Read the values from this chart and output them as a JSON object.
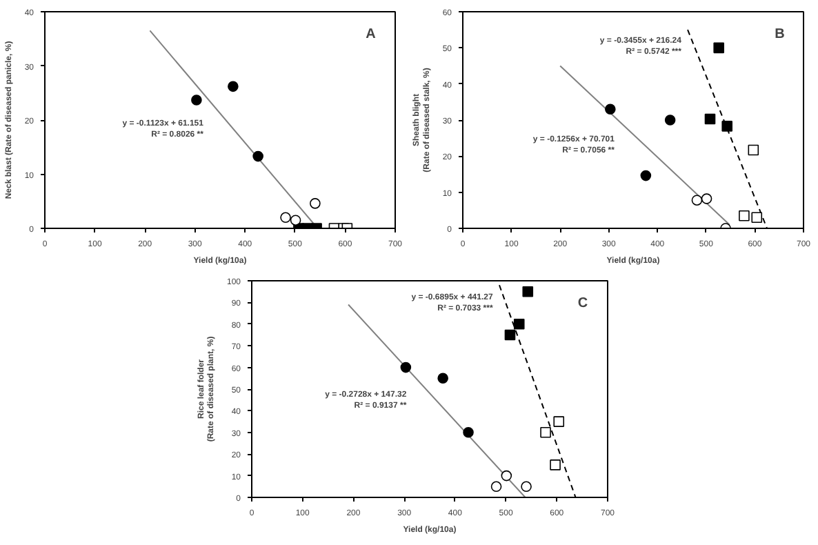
{
  "chart_data": [
    {
      "type": "scatter",
      "title": "A",
      "xlabel": "Yield (kg/10a)",
      "ylabel": "Neck blast (Rate of diseased panicle, %)",
      "xlim": [
        0,
        700
      ],
      "xticks": [
        0,
        100,
        200,
        300,
        400,
        500,
        600,
        700
      ],
      "ylim": [
        0,
        40
      ],
      "yticks": [
        0,
        10,
        20,
        30,
        40
      ],
      "grid": false,
      "series": [
        {
          "color": "#000000",
          "marker": "circle",
          "x": [
            303,
            376,
            426
          ],
          "values": [
            23.7,
            26.2,
            13.3
          ]
        },
        {
          "color": "#ffffff",
          "marker": "circle",
          "x": [
            481,
            501,
            540
          ],
          "values": [
            2,
            1.5,
            4.6
          ]
        },
        {
          "color": "#000000",
          "marker": "square",
          "x": [
            507,
            525,
            543
          ],
          "values": [
            0,
            0,
            0
          ]
        },
        {
          "color": "#ffffff",
          "marker": "square",
          "x": [
            578,
            597,
            604
          ],
          "values": [
            0,
            0,
            0
          ]
        },
        {
          "type": "line",
          "color": "#808080",
          "line_style": "solid",
          "marker": "none",
          "x": [
            210,
            545
          ],
          "values": [
            36.5,
            0
          ]
        }
      ],
      "annotations": [
        "y = -0.1123x + 61.151",
        "R² = 0.8026 **"
      ]
    },
    {
      "type": "scatter",
      "title": "B",
      "xlabel": "Yield (kg/10a)",
      "ylabel": "Sheath blight\n(Rate of diseased stalk, %)",
      "xlim": [
        0,
        700
      ],
      "xticks": [
        0,
        100,
        200,
        300,
        400,
        500,
        600,
        700
      ],
      "ylim": [
        0,
        60
      ],
      "yticks": [
        0,
        10,
        20,
        30,
        40,
        50,
        60
      ],
      "grid": false,
      "series": [
        {
          "color": "#000000",
          "marker": "circle",
          "x": [
            303,
            376,
            426
          ],
          "values": [
            33,
            14.6,
            30
          ]
        },
        {
          "color": "#ffffff",
          "marker": "circle",
          "x": [
            481,
            501,
            540
          ],
          "values": [
            7.8,
            8.2,
            0
          ]
        },
        {
          "color": "#000000",
          "marker": "square",
          "x": [
            526,
            508,
            543
          ],
          "values": [
            50,
            30.3,
            28.3
          ]
        },
        {
          "color": "#ffffff",
          "marker": "square",
          "x": [
            578,
            597,
            604
          ],
          "values": [
            3.5,
            21.7,
            3
          ]
        },
        {
          "type": "line",
          "color": "#808080",
          "line_style": "solid",
          "marker": "none",
          "x": [
            200,
            548
          ],
          "values": [
            45,
            1
          ]
        },
        {
          "type": "line",
          "color": "#000000",
          "line_style": "dashed",
          "marker": "none",
          "x": [
            462,
            625
          ],
          "values": [
            55,
            0
          ]
        }
      ],
      "annotations": [
        "y = -0.1256x + 70.701",
        "R² = 0.7056 **",
        "y = -0.3455x + 216.24",
        "R² = 0.5742 ***"
      ]
    },
    {
      "type": "scatter",
      "title": "C",
      "xlabel": "Yield (kg/10a)",
      "ylabel": "Rice leaf folder\n(Rate of diseased plant, %)",
      "xlim": [
        0,
        700
      ],
      "xticks": [
        0,
        100,
        200,
        300,
        400,
        500,
        600,
        700
      ],
      "ylim": [
        0,
        100
      ],
      "yticks": [
        0,
        10,
        20,
        30,
        40,
        50,
        60,
        70,
        80,
        90,
        100
      ],
      "grid": false,
      "series": [
        {
          "color": "#000000",
          "marker": "circle",
          "x": [
            303,
            376,
            426
          ],
          "values": [
            60,
            55,
            30
          ]
        },
        {
          "color": "#ffffff",
          "marker": "circle",
          "x": [
            481,
            501,
            540
          ],
          "values": [
            5,
            10,
            5
          ]
        },
        {
          "color": "#000000",
          "marker": "square",
          "x": [
            508,
            526,
            543
          ],
          "values": [
            75,
            80,
            95
          ]
        },
        {
          "color": "#ffffff",
          "marker": "square",
          "x": [
            578,
            597,
            604
          ],
          "values": [
            30,
            15,
            35
          ]
        },
        {
          "type": "line",
          "color": "#808080",
          "line_style": "solid",
          "marker": "none",
          "x": [
            190,
            538
          ],
          "values": [
            89,
            0
          ]
        },
        {
          "type": "line",
          "color": "#000000",
          "line_style": "dashed",
          "marker": "none",
          "x": [
            487,
            637
          ],
          "values": [
            98,
            0
          ]
        }
      ],
      "annotations": [
        "y = -0.2728x + 147.32",
        "R² = 0.9137 **",
        "y = -0.6895x + 441.27",
        "R² = 0.7033 ***"
      ]
    }
  ]
}
